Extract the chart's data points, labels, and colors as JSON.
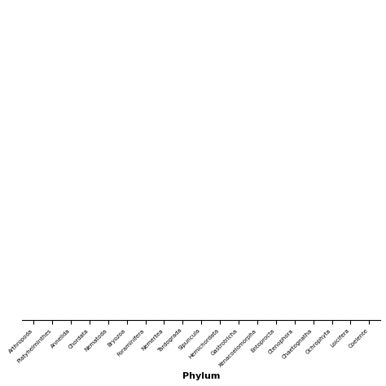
{
  "phyla": [
    "Arthropoda",
    "Platyhelminthes",
    "Annelida",
    "Chordata",
    "Nematoda",
    "Bryozoa",
    "Foraminifera",
    "Nemertea",
    "Tardograda",
    "Sipuncula",
    "Hemichordata",
    "Gastrotricha",
    "Xenacoelomorpha",
    "Entoprocta",
    "Ctenophora",
    "Chaetognatha",
    "Ochrophyta",
    "Loicifera",
    "Coelente"
  ],
  "fill_color": "#cce8f0",
  "edge_color": "#222222",
  "background_color": "#ffffff",
  "xlabel": "Phylum",
  "figsize": [
    4.74,
    4.74
  ],
  "dpi": 100
}
